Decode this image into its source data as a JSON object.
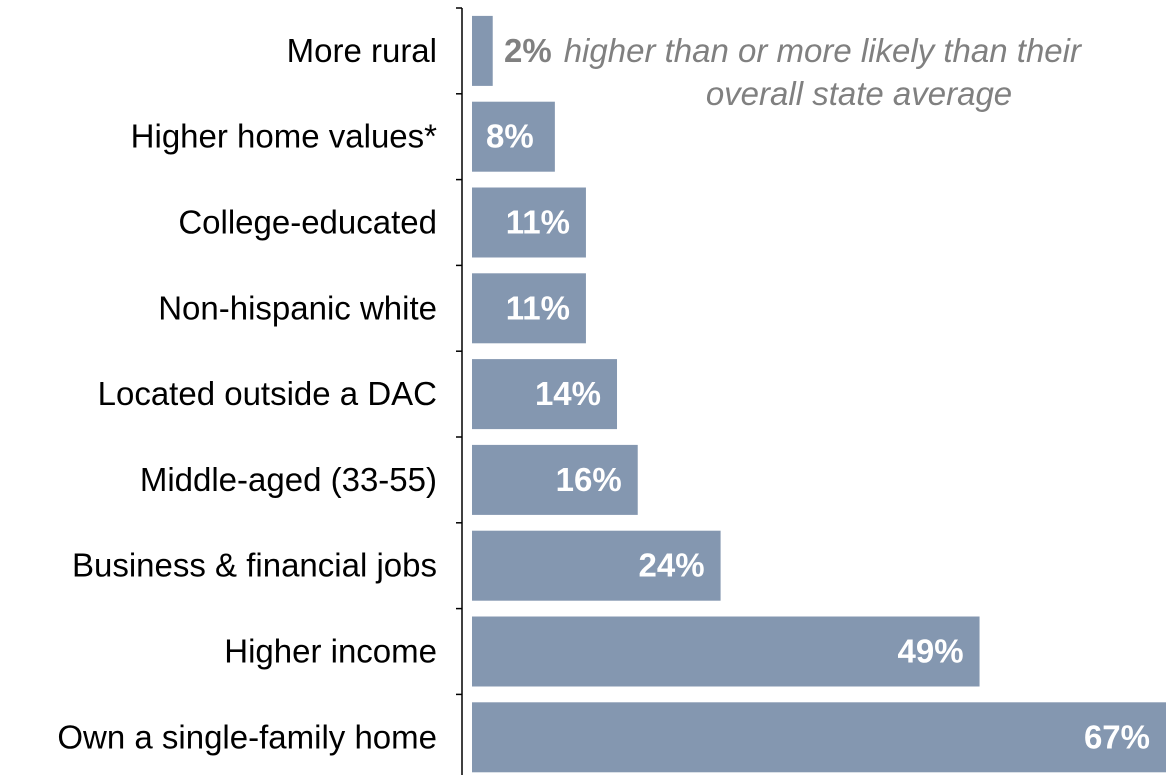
{
  "chart_data": {
    "type": "bar",
    "orientation": "horizontal",
    "categories": [
      "More rural",
      "Higher home values*",
      "College-educated",
      "Non-hispanic white",
      "Located outside a DAC",
      "Middle-aged (33-55)",
      "Business & financial jobs",
      "Higher income",
      "Own a single-family home"
    ],
    "values": [
      2,
      8,
      11,
      11,
      14,
      16,
      24,
      49,
      67
    ],
    "value_labels": [
      "2%",
      "8%",
      "11%",
      "11%",
      "14%",
      "16%",
      "24%",
      "49%",
      "67%"
    ],
    "unit": "%",
    "xlim": [
      0,
      67
    ],
    "grid": false,
    "legend": "none",
    "bar_color": "#8497b0",
    "inside_label_color": "#ffffff",
    "outside_label_color": "#808080",
    "axis_color": "#000000",
    "annotation": {
      "line1": "higher than or more likely than their",
      "line2": "overall state average"
    }
  }
}
